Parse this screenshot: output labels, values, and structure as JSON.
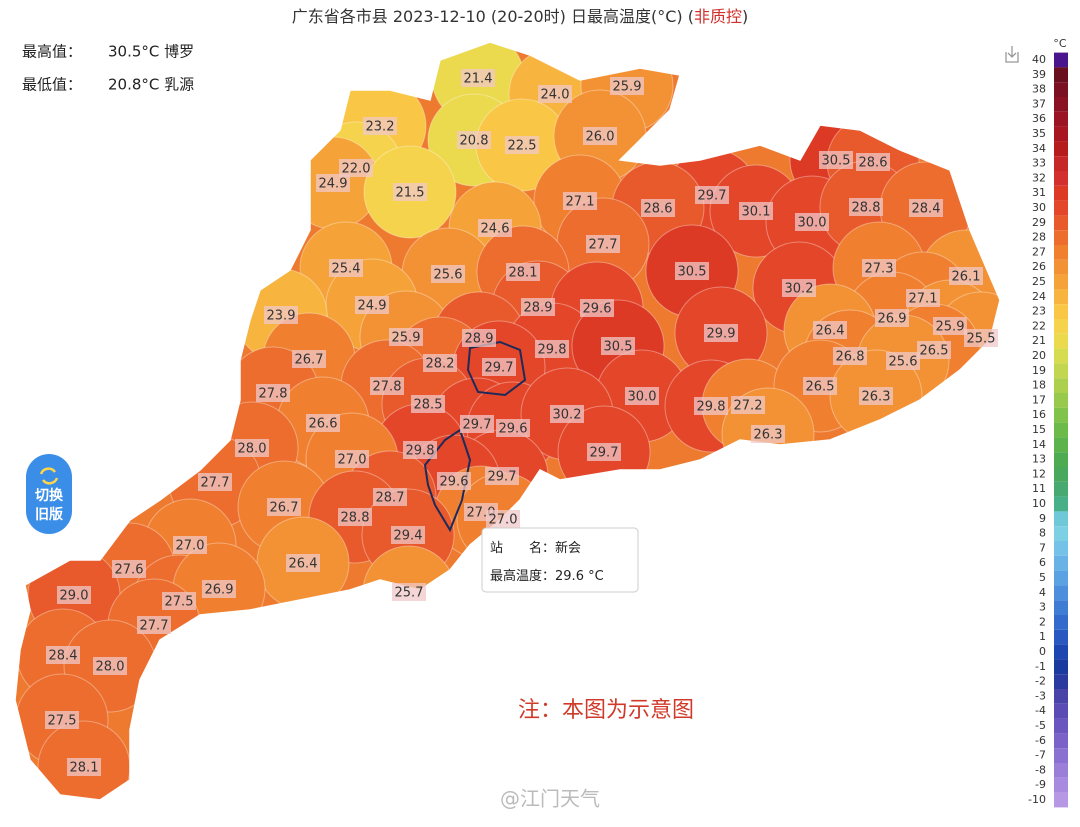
{
  "header": {
    "title": "广东省各市县 2023-12-10 (20-20时) 日最高温度(°C) (",
    "flag": "非质控",
    "close": ")"
  },
  "stats": [
    {
      "label": "最高值：",
      "value": "30.5°C 博罗"
    },
    {
      "label": "最低值：",
      "value": "20.8°C 乳源"
    }
  ],
  "map_labels": [
    "21.4",
    "24.0",
    "25.9",
    "23.2",
    "20.8",
    "22.5",
    "26.0",
    "30.5",
    "28.6",
    "22.0",
    "24.9",
    "21.5",
    "27.1",
    "29.7",
    "30.1",
    "30.0",
    "28.8",
    "28.4",
    "28.6",
    "24.6",
    "27.7",
    "25.4",
    "25.6",
    "28.1",
    "30.5",
    "30.2",
    "27.3",
    "26.1",
    "27.1",
    "24.9",
    "28.9",
    "29.6",
    "26.9",
    "25.9",
    "25.5",
    "26.5",
    "23.9",
    "25.9",
    "28.9",
    "29.8",
    "30.5",
    "29.9",
    "26.4",
    "26.8",
    "25.6",
    "26.7",
    "28.2",
    "29.7",
    "27.8",
    "27.8",
    "28.5",
    "30.0",
    "29.8",
    "27.2",
    "26.5",
    "26.3",
    "26.6",
    "29.7",
    "29.6",
    "30.2",
    "26.3",
    "28.0",
    "29.8",
    "27.0",
    "29.7",
    "29.7",
    "27.7",
    "29.6",
    "28.7",
    "26.7",
    "28.8",
    "27.0",
    "27.0",
    "29.4",
    "27.0",
    "26.4",
    "27.6",
    "29.0",
    "27.5",
    "26.9",
    "25.7",
    "27.7",
    "28.4",
    "28.0",
    "27.5",
    "28.1"
  ],
  "tooltip": {
    "station_label": "站　　名：",
    "station": "新会",
    "temp_label": "最高温度：",
    "temp": "29.6 °C"
  },
  "button": {
    "line1": "切换",
    "line2": "旧版"
  },
  "note": "注：本图为示意图",
  "watermark": "@江门天气",
  "legend": {
    "unit": "°C",
    "ticks": [
      40,
      39,
      38,
      37,
      36,
      35,
      34,
      33,
      32,
      31,
      30,
      29,
      28,
      27,
      26,
      25,
      24,
      23,
      22,
      21,
      20,
      19,
      18,
      17,
      16,
      15,
      14,
      13,
      12,
      11,
      10,
      9,
      8,
      7,
      6,
      5,
      4,
      3,
      2,
      1,
      0,
      -1,
      -2,
      -3,
      -4,
      -5,
      -6,
      -7,
      -8,
      -9,
      -10
    ],
    "colors": [
      "#4a148c",
      "#6a0f1e",
      "#7a1020",
      "#8a1222",
      "#9a1424",
      "#a81622",
      "#b71c1c",
      "#c62828",
      "#d32f2f",
      "#dd3a26",
      "#e4462a",
      "#e8592c",
      "#ec6d2e",
      "#f08030",
      "#f39234",
      "#f5a338",
      "#f7b43e",
      "#f9c646",
      "#f6d34c",
      "#ebd94e",
      "#d6dc50",
      "#c2d650",
      "#acd04e",
      "#96c94c",
      "#80c24a",
      "#6cbb4a",
      "#5cb34c",
      "#4eab52",
      "#48a85c",
      "#46aa70",
      "#48b088",
      "#6ec8d8",
      "#7cd0e4",
      "#74c2e8",
      "#68b2e6",
      "#5aa2e2",
      "#4d8fdc",
      "#3f7cd4",
      "#336acc",
      "#2858c0",
      "#1e46b0",
      "#1a3aa0",
      "#2a3a9e",
      "#4a44a8",
      "#5a4cb4",
      "#6a56be",
      "#7a62c8",
      "#8a70d0",
      "#9a7ed8",
      "#a88ade",
      "#b698e4"
    ]
  }
}
